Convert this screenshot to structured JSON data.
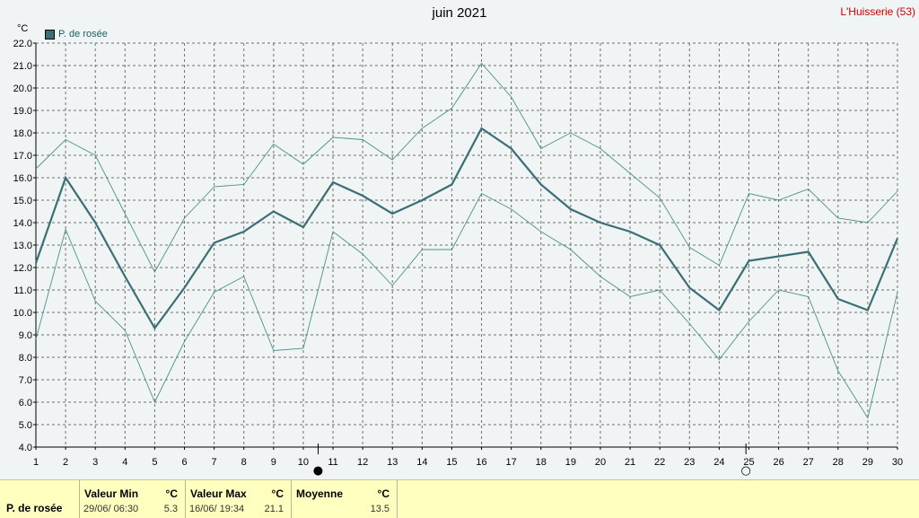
{
  "header": {
    "title": "juin 2021",
    "station": "L'Huisserie (53)",
    "unit": "°C"
  },
  "legend": {
    "label": "P. de rosée"
  },
  "colors": {
    "main": "#3a6f75",
    "minmax": "#4f8f8f",
    "grid": "#707070",
    "bg": "#f0f4f4",
    "summary_bg": "#ffffc0"
  },
  "moon_markers": [
    {
      "phase": "full-moon",
      "symbol": "●",
      "day": 10.5
    },
    {
      "phase": "new-moon",
      "symbol": "○",
      "day": 24.9
    }
  ],
  "chart_data": {
    "type": "line",
    "title": "juin 2021",
    "ylabel": "°C",
    "ylim": [
      4.0,
      22.0
    ],
    "y_ticks": [
      "4.0",
      "5.0",
      "6.0",
      "7.0",
      "8.0",
      "9.0",
      "10.0",
      "11.0",
      "12.0",
      "13.0",
      "14.0",
      "15.0",
      "16.0",
      "17.0",
      "18.0",
      "19.0",
      "20.0",
      "21.0",
      "22.0"
    ],
    "x": [
      1,
      2,
      3,
      4,
      5,
      6,
      7,
      8,
      9,
      10,
      11,
      12,
      13,
      14,
      15,
      16,
      17,
      18,
      19,
      20,
      21,
      22,
      23,
      24,
      25,
      26,
      27,
      28,
      29,
      30
    ],
    "grid": true,
    "legend_position": "top-left",
    "series": [
      {
        "name": "P. de rosée",
        "role": "mean",
        "values": [
          12.2,
          16.0,
          14.0,
          11.6,
          9.3,
          11.1,
          13.1,
          13.6,
          14.5,
          13.8,
          15.8,
          15.2,
          14.4,
          15.0,
          15.7,
          18.2,
          17.3,
          15.7,
          14.6,
          14.0,
          13.6,
          13.0,
          11.1,
          10.1,
          12.3,
          12.5,
          12.7,
          10.6,
          10.1,
          13.3
        ]
      },
      {
        "role": "max",
        "values": [
          16.4,
          17.7,
          17.0,
          14.4,
          11.8,
          14.2,
          15.6,
          15.7,
          17.5,
          16.6,
          17.8,
          17.7,
          16.8,
          18.2,
          19.1,
          21.1,
          19.6,
          17.3,
          18.0,
          17.3,
          16.2,
          15.1,
          12.9,
          12.1,
          15.3,
          15.0,
          15.5,
          14.2,
          14.0,
          15.4
        ]
      },
      {
        "role": "min",
        "values": [
          8.8,
          13.7,
          10.5,
          9.2,
          6.0,
          8.7,
          10.9,
          11.6,
          8.3,
          8.4,
          13.6,
          12.6,
          11.2,
          12.8,
          12.8,
          15.3,
          14.6,
          13.6,
          12.8,
          11.6,
          10.7,
          11.0,
          9.5,
          7.9,
          9.6,
          11.0,
          10.7,
          7.4,
          5.3,
          10.9
        ]
      }
    ]
  },
  "summary": {
    "series_name": "P. de rosée",
    "min": {
      "header": "Valeur Min",
      "unit": "°C",
      "timestamp": "29/06/  06:30",
      "value": "5.3"
    },
    "max": {
      "header": "Valeur Max",
      "unit": "°C",
      "timestamp": "16/06/  19:34",
      "value": "21.1"
    },
    "mean": {
      "header": "Moyenne",
      "unit": "°C",
      "value": "13.5"
    }
  }
}
